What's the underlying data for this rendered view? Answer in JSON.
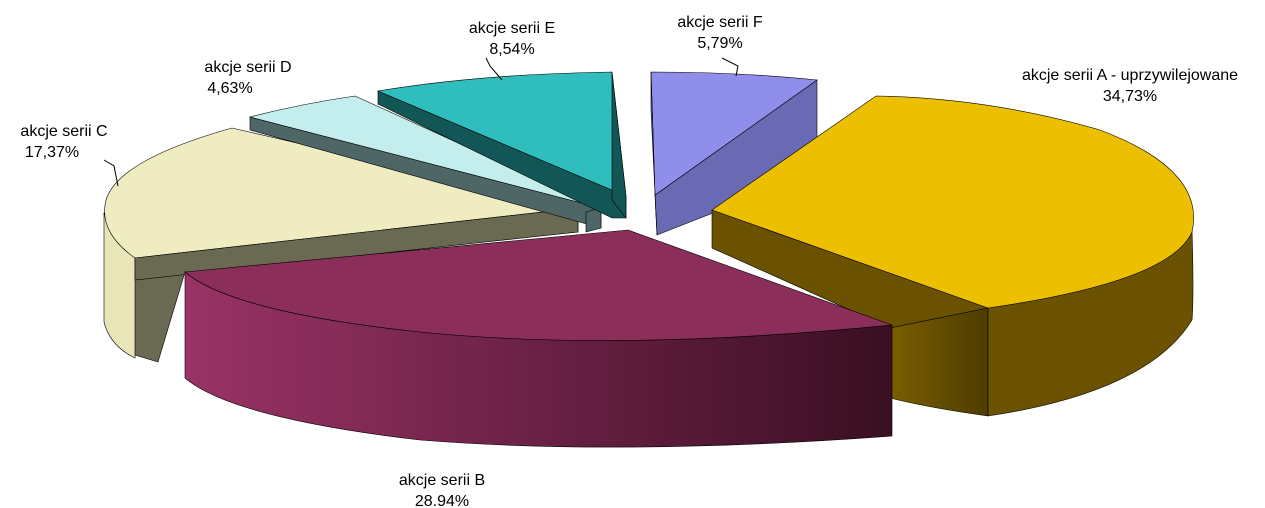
{
  "chart_data": {
    "type": "pie",
    "style": "3d-exploded",
    "slices": [
      {
        "label": "akcje serii A - uprzywilejowane",
        "value_text": "34,73%",
        "value": 34.73,
        "color": "#ecc000",
        "side_color": "#6a5200"
      },
      {
        "label": "akcje serii B",
        "value_text": "28.94%",
        "value": 28.94,
        "color": "#8c2e5a",
        "side_color": "#3d1024"
      },
      {
        "label": "akcje serii C",
        "value_text": "17,37%",
        "value": 17.37,
        "color": "#eeecc0",
        "side_color": "#6a6a52"
      },
      {
        "label": "akcje serii D",
        "value_text": "4,63%",
        "value": 4.63,
        "color": "#c4eeee",
        "side_color": "#4e6666"
      },
      {
        "label": "akcje serii E",
        "value_text": "8,54%",
        "value": 8.54,
        "color": "#2fbdbd",
        "side_color": "#135656"
      },
      {
        "label": "akcje serii F",
        "value_text": "5,79%",
        "value": 5.79,
        "color": "#8f8feb",
        "side_color": "#6a6ab4"
      }
    ]
  }
}
